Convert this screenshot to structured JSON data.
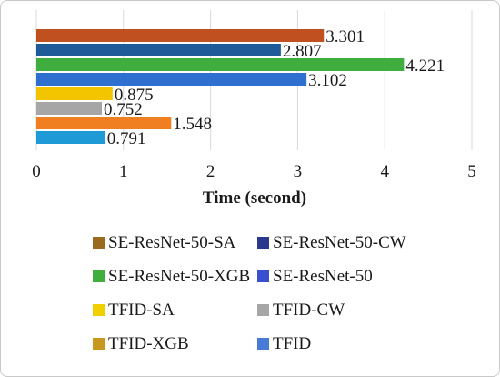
{
  "chart_data": {
    "type": "bar",
    "orientation": "horizontal",
    "xlabel": "Time (second)",
    "xlim": [
      0,
      5
    ],
    "xticks": [
      0,
      1,
      2,
      3,
      4,
      5
    ],
    "grid": "vertical",
    "legend_position": "bottom",
    "series": [
      {
        "name": "SE-ResNet-50-SA",
        "value": 3.301,
        "label": "3.301",
        "color": "#c0501f",
        "legend_color": "#996b1f"
      },
      {
        "name": "SE-ResNet-50-CW",
        "value": 2.807,
        "label": "2.807",
        "color": "#1f5b99",
        "legend_color": "#2b3a8c"
      },
      {
        "name": "SE-ResNet-50-XGB",
        "value": 4.221,
        "label": "4.221",
        "color": "#3fae3f",
        "legend_color": "#3fae3f"
      },
      {
        "name": "SE-ResNet-50",
        "value": 3.102,
        "label": "3.102",
        "color": "#2f6fcf",
        "legend_color": "#3a4fd0"
      },
      {
        "name": "TFID-SA",
        "value": 0.875,
        "label": "0.875",
        "color": "#f2c500",
        "legend_color": "#f2d000"
      },
      {
        "name": "TFID-CW",
        "value": 0.752,
        "label": "0.752",
        "color": "#a6a6a6",
        "legend_color": "#a6a6a6"
      },
      {
        "name": "TFID-XGB",
        "value": 1.548,
        "label": "1.548",
        "color": "#f07f22",
        "legend_color": "#c9961f"
      },
      {
        "name": "TFID",
        "value": 0.791,
        "label": "0.791",
        "color": "#1e9ad6",
        "legend_color": "#4a7ad8"
      }
    ]
  }
}
